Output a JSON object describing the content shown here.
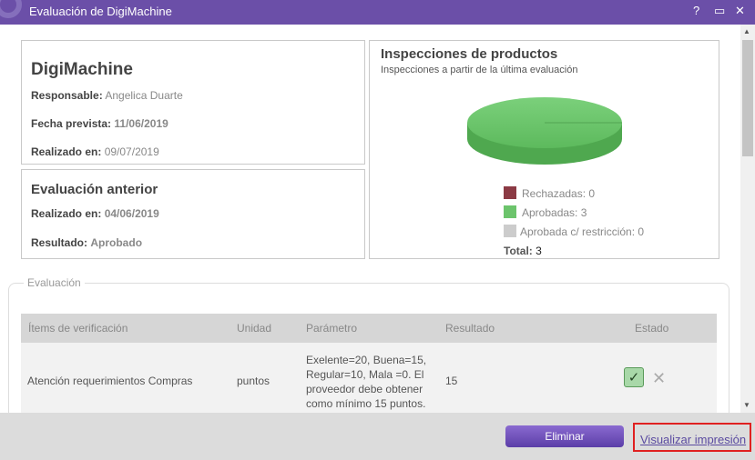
{
  "window": {
    "title": "Evaluación de DigiMachine",
    "help_glyph": "?",
    "minimize_glyph": "▭",
    "close_glyph": "✕"
  },
  "supplier": {
    "name": "DigiMachine",
    "responsible_label": "Responsable:",
    "responsible_value": "Angelica Duarte",
    "planned_label": "Fecha prevista:",
    "planned_value": "11/06/2019",
    "done_label": "Realizado en:",
    "done_value": "09/07/2019"
  },
  "previous": {
    "title": "Evaluación anterior",
    "done_label": "Realizado en:",
    "done_value": "04/06/2019",
    "result_label": "Resultado:",
    "result_value": "Aprobado"
  },
  "inspections": {
    "title": "Inspecciones de productos",
    "subtitle": "Inspecciones a partir de la última evaluación",
    "legend": [
      {
        "label": "Rechazadas:",
        "value": "0",
        "color": "#8b3a44"
      },
      {
        "label": "Aprobadas:",
        "value": "3",
        "color": "#6cc46c"
      },
      {
        "label": "Aprobada c/ restricción:",
        "value": "0",
        "color": "#cccccc"
      }
    ],
    "total_label": "Total:",
    "total_value": "3"
  },
  "chart_data": {
    "type": "pie",
    "categories": [
      "Rechazadas",
      "Aprobadas",
      "Aprobada c/ restricción"
    ],
    "values": [
      0,
      3,
      0
    ],
    "colors": [
      "#8b3a44",
      "#6cc46c",
      "#cccccc"
    ]
  },
  "evaluation": {
    "group_label": "Evaluación",
    "headers": [
      "Ítems de verificación",
      "Unidad",
      "Parámetro",
      "Resultado",
      "Estado"
    ],
    "rows": [
      {
        "item": "Atención requerimientos Compras",
        "unit": "puntos",
        "param_lines": [
          "Exelente=20, Buena=15,",
          "Regular=10, Mala =0. El",
          "proveedor debe obtener",
          "como mínimo 15 puntos."
        ],
        "result": "15",
        "approve_glyph": "✓",
        "reject_glyph": "✕"
      }
    ]
  },
  "footer": {
    "delete_label": "Eliminar",
    "print_label": "Visualizar impresión"
  },
  "scroll": {
    "up_glyph": "▲",
    "down_glyph": "▼"
  }
}
